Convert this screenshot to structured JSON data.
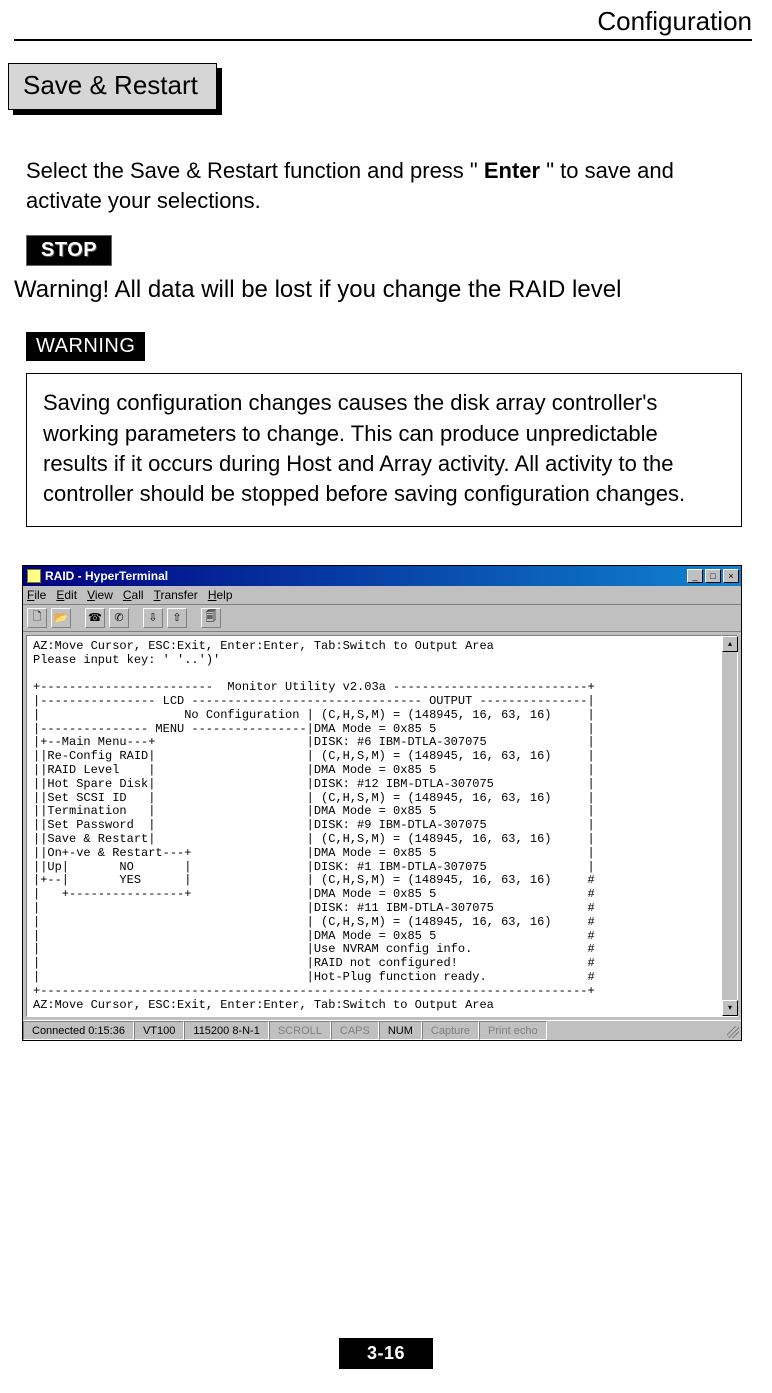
{
  "header": {
    "title": "Configuration"
  },
  "section": {
    "title": "Save & Restart"
  },
  "intro": {
    "pre": "Select the Save & Restart function and press \" ",
    "bold": "Enter",
    "post": " \" to save and activate your selections."
  },
  "stop": {
    "label": "STOP",
    "text": "Warning!  All data will be lost if you change the RAID level"
  },
  "warning": {
    "label": "WARNING",
    "text": "Saving configuration changes causes the disk array controller's working parameters to change. This can produce unpredictable results if it occurs during Host and Array activity. All activity to the controller should be stopped before saving configuration changes."
  },
  "hyperterminal": {
    "title": "RAID - HyperTerminal",
    "menu": {
      "file": "File",
      "edit": "Edit",
      "view": "View",
      "call": "Call",
      "transfer": "Transfer",
      "help": "Help"
    },
    "toolbar_icons": [
      "new-icon",
      "open-icon",
      "connect-icon",
      "disconnect-icon",
      "send-icon",
      "receive-icon",
      "properties-icon"
    ],
    "status": {
      "connected": "Connected 0:15:36",
      "emulation": "VT100",
      "port": "115200 8-N-1",
      "scroll": "SCROLL",
      "caps": "CAPS",
      "num": "NUM",
      "capture": "Capture",
      "printecho": "Print echo"
    },
    "terminal_text": "AZ:Move Cursor, ESC:Exit, Enter:Enter, Tab:Switch to Output Area\nPlease input key: ' '..')'\n\n+------------------------  Monitor Utility v2.03a ---------------------------+\n|---------------- LCD -------------------------------- OUTPUT ---------------|\n|                    No Configuration | (C,H,S,M) = (148945, 16, 63, 16)     |\n|--------------- MENU ----------------|DMA Mode = 0x85 5                     |\n|+--Main Menu---+                     |DISK: #6 IBM-DTLA-307075              |\n||Re-Config RAID|                     | (C,H,S,M) = (148945, 16, 63, 16)     |\n||RAID Level    |                     |DMA Mode = 0x85 5                     |\n||Hot Spare Disk|                     |DISK: #12 IBM-DTLA-307075             |\n||Set SCSI ID   |                     | (C,H,S,M) = (148945, 16, 63, 16)     |\n||Termination   |                     |DMA Mode = 0x85 5                     |\n||Set Password  |                     |DISK: #9 IBM-DTLA-307075              |\n||Save & Restart|                     | (C,H,S,M) = (148945, 16, 63, 16)     |\n||On+-ve & Restart---+                |DMA Mode = 0x85 5                     |\n||Up|       NO       |                |DISK: #1 IBM-DTLA-307075              |\n|+--|       YES      |                | (C,H,S,M) = (148945, 16, 63, 16)     #\n|   +----------------+                |DMA Mode = 0x85 5                     #\n|                                     |DISK: #11 IBM-DTLA-307075             #\n|                                     | (C,H,S,M) = (148945, 16, 63, 16)     #\n|                                     |DMA Mode = 0x85 5                     #\n|                                     |Use NVRAM config info.                #\n|                                     |RAID not configured!                  #\n|                                     |Hot-Plug function ready.              #\n+----------------------------------------------------------------------------+\nAZ:Move Cursor, ESC:Exit, Enter:Enter, Tab:Switch to Output Area"
  },
  "page_number": "3-16",
  "colors": {
    "titlebar_start": "#000080",
    "titlebar_end": "#1084d0",
    "win_bg": "#c0c0c0",
    "section_bg": "#d6d6d6"
  }
}
